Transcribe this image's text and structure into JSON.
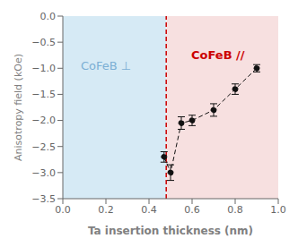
{
  "chart_data": {
    "type": "line",
    "x": [
      0.47,
      0.5,
      0.55,
      0.6,
      0.7,
      0.8,
      0.9
    ],
    "values": [
      -2.7,
      -3.0,
      -2.05,
      -2.0,
      -1.8,
      -1.4,
      -1.0
    ],
    "errors": [
      0.1,
      0.15,
      0.12,
      0.1,
      0.12,
      0.1,
      0.07
    ],
    "color": "#111111",
    "marker": "o",
    "line_style": "dashed",
    "xlabel": "Ta insertion thickness (nm)",
    "ylabel": "Anisotropy field (kOe)",
    "xlim": [
      0.0,
      1.0
    ],
    "ylim": [
      -3.5,
      0.0
    ],
    "xticks": [
      {
        "value": 0.0,
        "label": "0.0"
      },
      0.2,
      0.4,
      0.6,
      0.8,
      {
        "value": 1.0,
        "label": "1.0"
      }
    ],
    "yticks": [
      {
        "value": 0.0,
        "label": "0.0"
      },
      {
        "value": -0.5,
        "label": "−0.5"
      },
      {
        "value": -1.0,
        "label": "−1.0"
      },
      {
        "value": -1.5,
        "label": "−1.5"
      },
      {
        "value": -2.0,
        "label": "−2.0"
      },
      {
        "value": -2.5,
        "label": "−2.5"
      },
      {
        "value": -3.0,
        "label": "−3.0"
      },
      {
        "value": -3.5,
        "label": "−3.5"
      }
    ],
    "grid": false,
    "shaded_regions": [
      {
        "x": [
          0.0,
          0.48
        ],
        "color": "#d6eaf5"
      },
      {
        "x": [
          0.48,
          1.0
        ],
        "color": "#f7e0e0"
      }
    ],
    "reference_lines": [
      {
        "x": 0.48,
        "color": "#cc0000",
        "line_style": "dashed"
      }
    ],
    "annotations": [
      {
        "text": "CoFeB ⊥",
        "x": 0.2,
        "y": -0.95,
        "color": "#7bafd4",
        "font_weight": "normal"
      },
      {
        "text": "CoFeB //",
        "x": 0.72,
        "y": -0.75,
        "color": "#cc0000",
        "font_weight": "bold"
      }
    ]
  }
}
